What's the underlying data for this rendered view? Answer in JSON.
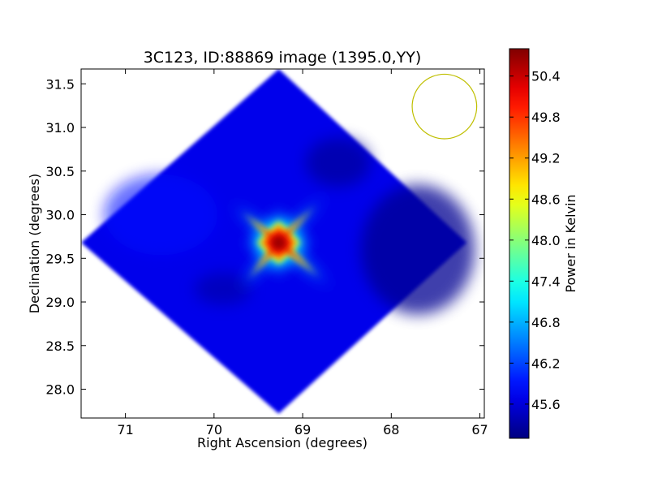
{
  "chart_data": {
    "type": "heatmap",
    "title": "3C123, ID:88869 image (1395.0,YY)",
    "xlabel": "Right Ascension (degrees)",
    "ylabel": "Declination (degrees)",
    "xlim": [
      71.5,
      66.95
    ],
    "ylim": [
      27.67,
      31.67
    ],
    "x_ticks": [
      {
        "value": 71,
        "label": "71"
      },
      {
        "value": 70,
        "label": "70"
      },
      {
        "value": 69,
        "label": "69"
      },
      {
        "value": 68,
        "label": "68"
      },
      {
        "value": 67,
        "label": "67"
      }
    ],
    "y_ticks": [
      {
        "value": 28.0,
        "label": "28.0"
      },
      {
        "value": 28.5,
        "label": "28.5"
      },
      {
        "value": 29.0,
        "label": "29.0"
      },
      {
        "value": 29.5,
        "label": "29.5"
      },
      {
        "value": 30.0,
        "label": "30.0"
      },
      {
        "value": 30.5,
        "label": "30.5"
      },
      {
        "value": 31.0,
        "label": "31.0"
      },
      {
        "value": 31.5,
        "label": "31.5"
      }
    ],
    "colorbar": {
      "label": "Power in Kelvin",
      "colormap": "jet",
      "range": [
        45.1,
        50.8
      ],
      "ticks": [
        {
          "value": 45.6,
          "label": "45.6"
        },
        {
          "value": 46.2,
          "label": "46.2"
        },
        {
          "value": 46.8,
          "label": "46.8"
        },
        {
          "value": 47.4,
          "label": "47.4"
        },
        {
          "value": 48.0,
          "label": "48.0"
        },
        {
          "value": 48.6,
          "label": "48.6"
        },
        {
          "value": 49.2,
          "label": "49.2"
        },
        {
          "value": 49.8,
          "label": "49.8"
        },
        {
          "value": 50.4,
          "label": "50.4"
        }
      ]
    },
    "map_footprint": {
      "shape": "diamond",
      "center": [
        69.27,
        29.68
      ],
      "vertices": [
        [
          69.27,
          31.67
        ],
        [
          67.15,
          29.68
        ],
        [
          69.27,
          27.72
        ],
        [
          71.5,
          29.68
        ]
      ],
      "background_value": 45.7
    },
    "peak": {
      "ra": 69.27,
      "dec": 29.67,
      "value": 50.7
    },
    "beam_circle": {
      "ra": 67.4,
      "dec": 31.24,
      "radius_deg": 0.37,
      "color": "#bfbf00"
    }
  }
}
